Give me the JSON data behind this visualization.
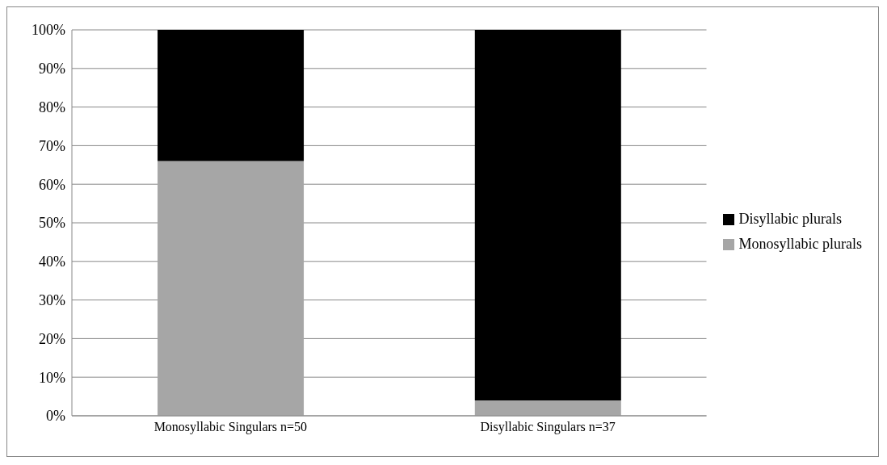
{
  "chart_data": {
    "type": "bar",
    "stacked": true,
    "categories": [
      "Monosyllabic Singulars n=50",
      "Disyllabic Singulars n=37"
    ],
    "series": [
      {
        "name": "Monosyllabic plurals",
        "color": "#a6a6a6",
        "values": [
          66,
          4
        ]
      },
      {
        "name": "Disyllabic plurals",
        "color": "#000000",
        "values": [
          34,
          96
        ]
      }
    ],
    "ylim": [
      0,
      100
    ],
    "yticks": [
      {
        "value": 0,
        "label": "0%"
      },
      {
        "value": 10,
        "label": "10%"
      },
      {
        "value": 20,
        "label": "20%"
      },
      {
        "value": 30,
        "label": "30%"
      },
      {
        "value": 40,
        "label": "40%"
      },
      {
        "value": 50,
        "label": "50%"
      },
      {
        "value": 60,
        "label": "60%"
      },
      {
        "value": 70,
        "label": "70%"
      },
      {
        "value": 80,
        "label": "80%"
      },
      {
        "value": 90,
        "label": "90%"
      },
      {
        "value": 100,
        "label": "100%"
      }
    ],
    "grid": "y",
    "legend": "right"
  }
}
